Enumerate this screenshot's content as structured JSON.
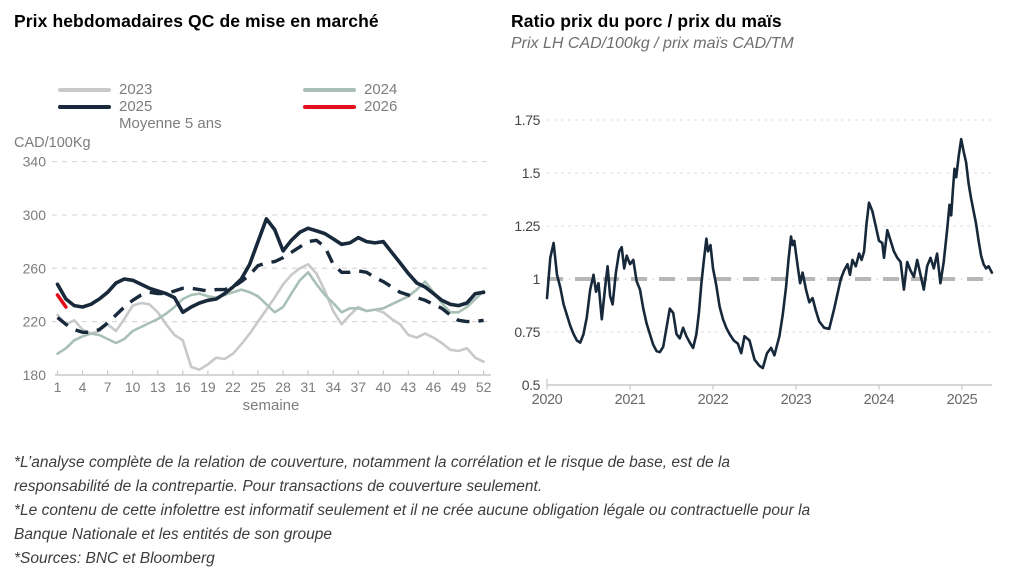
{
  "left_chart": {
    "title": "Prix hebdomadaires QC de mise en marché",
    "unit_label": "CAD/100Kg",
    "xlabel": "semaine",
    "legend_columns": [
      [
        "2023",
        "2025",
        "Moyenne 5 ans"
      ],
      [
        "2024",
        "2026"
      ]
    ]
  },
  "right_chart": {
    "title": "Ratio prix du porc / prix du maïs",
    "subtitle": "Prix LH CAD/100kg / prix maïs CAD/TM"
  },
  "footnotes": [
    "*L’analyse complète de la relation de couverture, notamment la corrélation et le risque de base, est de la",
    "responsabilité de la contrepartie. Pour transactions de couverture seulement.",
    "*Le contenu de cette infolettre est informatif seulement et il ne crée aucune obligation légale ou contractuelle pour la",
    "Banque Nationale et les entités de son groupe",
    "*Sources: BNC et Bloomberg"
  ],
  "colors": {
    "navy": "#17293a",
    "gray_2023": "#c7c9ca",
    "sage_2024": "#a8c0b5",
    "red_2026": "#e3101c",
    "axis_label": "#7c7c7c",
    "gridline": "#d9d9d9",
    "axis_line": "#c8c8c8",
    "reference_dash": "#b7b7b7",
    "right_tick_label": "#454545",
    "right_year_label": "#696969"
  },
  "chart_data": [
    {
      "type": "line",
      "title": "Prix hebdomadaires QC de mise en marché",
      "xlabel": "semaine",
      "ylabel": "CAD/100Kg",
      "ylim": [
        180,
        340
      ],
      "y_ticks": [
        180,
        220,
        260,
        300,
        340
      ],
      "x_ticks": [
        1,
        4,
        7,
        10,
        13,
        16,
        19,
        22,
        25,
        28,
        31,
        34,
        37,
        40,
        43,
        46,
        49,
        52
      ],
      "grid": "horizontal-dashed",
      "legend_position": "top",
      "series": [
        {
          "name": "2023",
          "color": "#c7c9ca",
          "width": 2.6,
          "dash": null,
          "x_start": 1,
          "values": [
            225,
            218,
            221,
            214,
            211,
            213,
            218,
            213,
            222,
            232,
            234,
            233,
            227,
            218,
            210,
            206,
            186,
            184,
            188,
            193,
            192,
            196,
            203,
            211,
            220,
            229,
            238,
            248,
            255,
            260,
            263,
            256,
            243,
            228,
            218,
            225,
            231,
            228,
            229,
            227,
            222,
            218,
            210,
            208,
            211,
            208,
            204,
            199,
            198,
            200,
            193,
            190
          ]
        },
        {
          "name": "2024",
          "color": "#a8c0b5",
          "width": 2.6,
          "dash": null,
          "x_start": 1,
          "values": [
            196,
            200,
            206,
            209,
            211,
            210,
            207,
            204,
            207,
            213,
            216,
            219,
            222,
            226,
            231,
            237,
            240,
            241,
            239,
            238,
            240,
            242,
            244,
            242,
            239,
            233,
            227,
            231,
            241,
            251,
            257,
            248,
            240,
            234,
            227,
            230,
            230,
            228,
            229,
            230,
            233,
            236,
            239,
            244,
            250,
            242,
            234,
            227,
            227,
            231,
            237,
            243
          ]
        },
        {
          "name": "Moyenne 5 ans",
          "color": "#17293a",
          "width": 3.4,
          "dash": "13 9",
          "x_start": 1,
          "values": [
            223,
            218,
            214,
            212,
            212,
            214,
            219,
            225,
            231,
            236,
            240,
            242,
            241,
            241,
            243,
            245,
            245,
            244,
            243,
            244,
            244,
            246,
            250,
            255,
            262,
            264,
            265,
            268,
            272,
            276,
            280,
            281,
            276,
            263,
            257,
            257,
            258,
            257,
            253,
            250,
            246,
            242,
            240,
            238,
            236,
            233,
            230,
            225,
            221,
            220,
            220,
            221
          ]
        },
        {
          "name": "2025",
          "color": "#17293a",
          "width": 3.6,
          "dash": null,
          "x_start": 1,
          "values": [
            248,
            237,
            232,
            231,
            233,
            237,
            242,
            249,
            252,
            251,
            248,
            245,
            243,
            241,
            238,
            227,
            231,
            234,
            236,
            237,
            241,
            246,
            252,
            263,
            280,
            297,
            289,
            273,
            281,
            287,
            290,
            288,
            286,
            282,
            278,
            279,
            283,
            280,
            279,
            280,
            272,
            264,
            256,
            249,
            246,
            241,
            236,
            233,
            232,
            234,
            241,
            242
          ]
        },
        {
          "name": "2026",
          "color": "#e3101c",
          "width": 3.6,
          "dash": null,
          "x_start": 1,
          "values": [
            240,
            231
          ]
        }
      ]
    },
    {
      "type": "line",
      "title": "Ratio prix du porc / prix du maïs",
      "subtitle": "Prix LH CAD/100kg / prix maïs CAD/TM",
      "ylim": [
        0.5,
        1.75
      ],
      "xlim": [
        2020,
        2025.45
      ],
      "y_ticks": [
        0.5,
        0.75,
        1,
        1.25,
        1.5,
        1.75
      ],
      "x_ticks": [
        2020,
        2021,
        2022,
        2023,
        2024,
        2025
      ],
      "grid": "horizontal-dashed",
      "reference_line": {
        "y": 1,
        "color": "#b7b7b7",
        "width": 4,
        "dash": "16 12"
      },
      "series": [
        {
          "name": "Ratio porc/maïs",
          "color": "#16283a",
          "width": 2.6,
          "x": [
            2020.0,
            2020.04,
            2020.08,
            2020.12,
            2020.16,
            2020.2,
            2020.24,
            2020.28,
            2020.32,
            2020.36,
            2020.4,
            2020.44,
            2020.48,
            2020.52,
            2020.56,
            2020.59,
            2020.62,
            2020.66,
            2020.7,
            2020.73,
            2020.76,
            2020.79,
            2020.83,
            2020.87,
            2020.9,
            2020.93,
            2020.96,
            2021.0,
            2021.04,
            2021.08,
            2021.12,
            2021.16,
            2021.2,
            2021.24,
            2021.28,
            2021.32,
            2021.36,
            2021.4,
            2021.44,
            2021.48,
            2021.52,
            2021.56,
            2021.6,
            2021.64,
            2021.68,
            2021.72,
            2021.76,
            2021.8,
            2021.83,
            2021.86,
            2021.89,
            2021.92,
            2021.94,
            2021.97,
            2022.0,
            2022.04,
            2022.08,
            2022.12,
            2022.16,
            2022.2,
            2022.25,
            2022.3,
            2022.34,
            2022.38,
            2022.44,
            2022.5,
            2022.56,
            2022.6,
            2022.65,
            2022.7,
            2022.74,
            2022.8,
            2022.84,
            2022.88,
            2022.91,
            2022.94,
            2022.96,
            2022.98,
            2023.02,
            2023.05,
            2023.08,
            2023.12,
            2023.16,
            2023.2,
            2023.24,
            2023.28,
            2023.34,
            2023.4,
            2023.46,
            2023.5,
            2023.54,
            2023.58,
            2023.62,
            2023.65,
            2023.68,
            2023.72,
            2023.76,
            2023.79,
            2023.82,
            2023.85,
            2023.88,
            2023.92,
            2023.96,
            2024.0,
            2024.04,
            2024.06,
            2024.1,
            2024.14,
            2024.18,
            2024.22,
            2024.26,
            2024.3,
            2024.34,
            2024.38,
            2024.42,
            2024.46,
            2024.5,
            2024.54,
            2024.58,
            2024.62,
            2024.66,
            2024.7,
            2024.74,
            2024.78,
            2024.82,
            2024.85,
            2024.87,
            2024.89,
            2024.91,
            2024.93,
            2024.96,
            2024.99,
            2025.02,
            2025.05,
            2025.08,
            2025.11,
            2025.14,
            2025.17,
            2025.2,
            2025.23,
            2025.26,
            2025.29,
            2025.32,
            2025.36
          ],
          "values": [
            0.91,
            1.1,
            1.17,
            1.02,
            0.96,
            0.88,
            0.83,
            0.78,
            0.74,
            0.71,
            0.7,
            0.74,
            0.82,
            0.95,
            1.02,
            0.94,
            0.98,
            0.81,
            0.96,
            1.06,
            0.92,
            0.88,
            1.03,
            1.13,
            1.15,
            1.05,
            1.11,
            1.07,
            1.09,
            0.99,
            0.95,
            0.86,
            0.79,
            0.74,
            0.69,
            0.66,
            0.655,
            0.68,
            0.77,
            0.86,
            0.84,
            0.74,
            0.72,
            0.77,
            0.73,
            0.7,
            0.675,
            0.74,
            0.84,
            0.98,
            1.09,
            1.19,
            1.13,
            1.16,
            1.05,
            0.97,
            0.87,
            0.81,
            0.77,
            0.74,
            0.71,
            0.695,
            0.65,
            0.73,
            0.71,
            0.62,
            0.59,
            0.58,
            0.65,
            0.675,
            0.64,
            0.73,
            0.83,
            0.96,
            1.09,
            1.2,
            1.16,
            1.18,
            1.06,
            0.98,
            1.03,
            0.95,
            0.89,
            0.91,
            0.85,
            0.8,
            0.77,
            0.765,
            0.86,
            0.93,
            1.0,
            1.04,
            1.07,
            1.02,
            1.09,
            1.06,
            1.12,
            1.09,
            1.13,
            1.26,
            1.36,
            1.32,
            1.25,
            1.18,
            1.17,
            1.1,
            1.23,
            1.18,
            1.13,
            1.1,
            1.08,
            0.95,
            1.08,
            1.04,
            1.01,
            1.09,
            1.02,
            0.95,
            1.06,
            1.1,
            1.05,
            1.12,
            0.98,
            1.08,
            1.23,
            1.35,
            1.3,
            1.42,
            1.52,
            1.48,
            1.58,
            1.66,
            1.6,
            1.55,
            1.45,
            1.38,
            1.32,
            1.26,
            1.18,
            1.11,
            1.07,
            1.05,
            1.06,
            1.03
          ]
        }
      ]
    }
  ]
}
